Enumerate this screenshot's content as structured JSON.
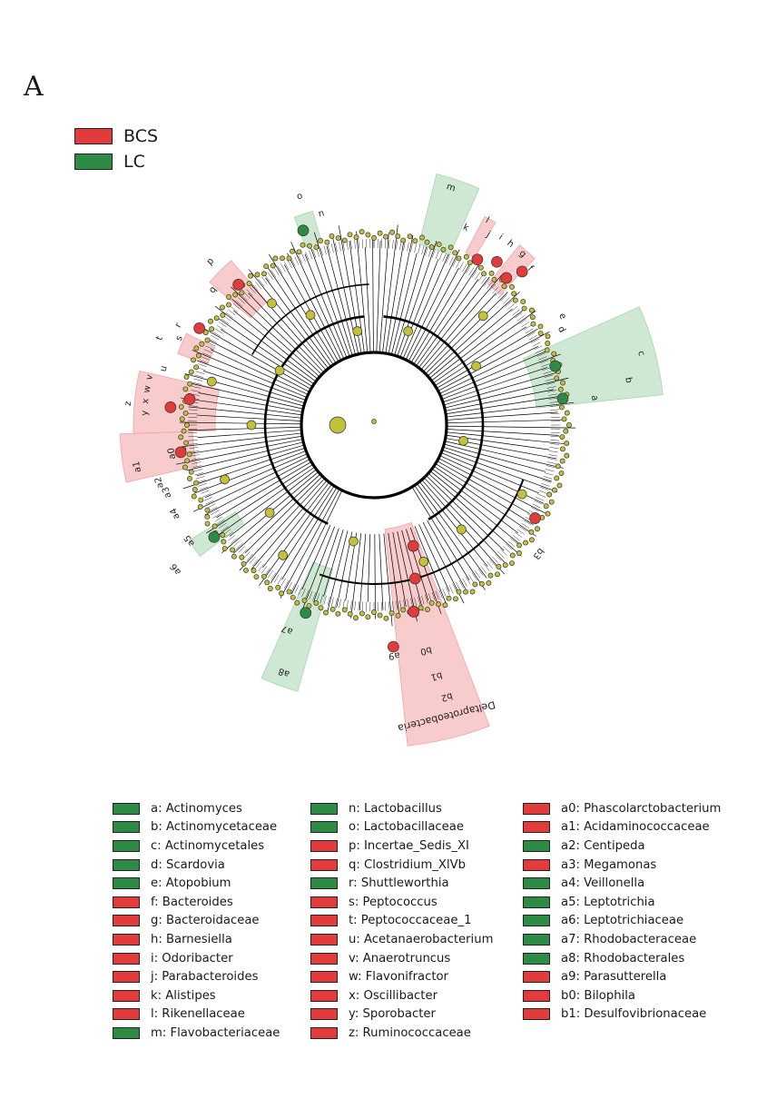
{
  "panel_label": "A",
  "colors": {
    "BCS": "#e23b3b",
    "LC": "#2e8b46",
    "node": "#c3c03a",
    "bcs_shade": "#f2a3a3",
    "lc_shade": "#a7d6b0"
  },
  "group_legend": [
    {
      "label": "BCS",
      "group": "BCS"
    },
    {
      "label": "LC",
      "group": "LC"
    }
  ],
  "tree_labels": {
    "deltaproteobacteria": "Deltaproteobacteria",
    "clade_letters": [
      "o",
      "n",
      "m",
      "l",
      "k",
      "j",
      "i",
      "h",
      "g",
      "f",
      "e",
      "d",
      "c",
      "b",
      "a",
      "p",
      "q",
      "r",
      "s",
      "t",
      "u",
      "v",
      "w",
      "x",
      "y",
      "z",
      "a0",
      "a1",
      "a2",
      "a3",
      "a4",
      "a5",
      "a6",
      "a7",
      "a8",
      "a9",
      "b0",
      "b1",
      "b2",
      "b3"
    ]
  },
  "taxa_legend": {
    "col1": [
      {
        "text": "a: Actinomyces",
        "group": "LC"
      },
      {
        "text": "b: Actinomycetaceae",
        "group": "LC"
      },
      {
        "text": "c: Actinomycetales",
        "group": "LC"
      },
      {
        "text": "d: Scardovia",
        "group": "LC"
      },
      {
        "text": "e: Atopobium",
        "group": "LC"
      },
      {
        "text": "f: Bacteroides",
        "group": "BCS"
      },
      {
        "text": "g: Bacteroidaceae",
        "group": "BCS"
      },
      {
        "text": "h: Barnesiella",
        "group": "BCS"
      },
      {
        "text": "i: Odoribacter",
        "group": "BCS"
      },
      {
        "text": "j: Parabacteroides",
        "group": "BCS"
      },
      {
        "text": "k: Alistipes",
        "group": "BCS"
      },
      {
        "text": "l: Rikenellaceae",
        "group": "BCS"
      },
      {
        "text": "m: Flavobacteriaceae",
        "group": "LC"
      }
    ],
    "col2": [
      {
        "text": "n: Lactobacillus",
        "group": "LC"
      },
      {
        "text": "o: Lactobacillaceae",
        "group": "LC"
      },
      {
        "text": "p: Incertae_Sedis_XI",
        "group": "BCS"
      },
      {
        "text": "q: Clostridium_XlVb",
        "group": "BCS"
      },
      {
        "text": "r: Shuttleworthia",
        "group": "LC"
      },
      {
        "text": "s: Peptococcus",
        "group": "BCS"
      },
      {
        "text": "t: Peptococcaceae_1",
        "group": "BCS"
      },
      {
        "text": "u: Acetanaerobacterium",
        "group": "BCS"
      },
      {
        "text": "v: Anaerotruncus",
        "group": "BCS"
      },
      {
        "text": "w: Flavonifractor",
        "group": "BCS"
      },
      {
        "text": "x: Oscillibacter",
        "group": "BCS"
      },
      {
        "text": "y: Sporobacter",
        "group": "BCS"
      },
      {
        "text": "z: Ruminococcaceae",
        "group": "BCS"
      }
    ],
    "col3": [
      {
        "text": "a0: Phascolarctobacterium",
        "group": "BCS"
      },
      {
        "text": "a1: Acidaminococcaceae",
        "group": "BCS"
      },
      {
        "text": "a2: Centipeda",
        "group": "LC"
      },
      {
        "text": "a3: Megamonas",
        "group": "BCS"
      },
      {
        "text": "a4: Veillonella",
        "group": "LC"
      },
      {
        "text": "a5: Leptotrichia",
        "group": "LC"
      },
      {
        "text": "a6: Leptotrichiaceae",
        "group": "LC"
      },
      {
        "text": "a7: Rhodobacteraceae",
        "group": "LC"
      },
      {
        "text": "a8: Rhodobacterales",
        "group": "LC"
      },
      {
        "text": "a9: Parasutterella",
        "group": "BCS"
      },
      {
        "text": "b0: Bilophila",
        "group": "BCS"
      },
      {
        "text": "b1: Desulfovibrionaceae",
        "group": "BCS"
      }
    ]
  }
}
